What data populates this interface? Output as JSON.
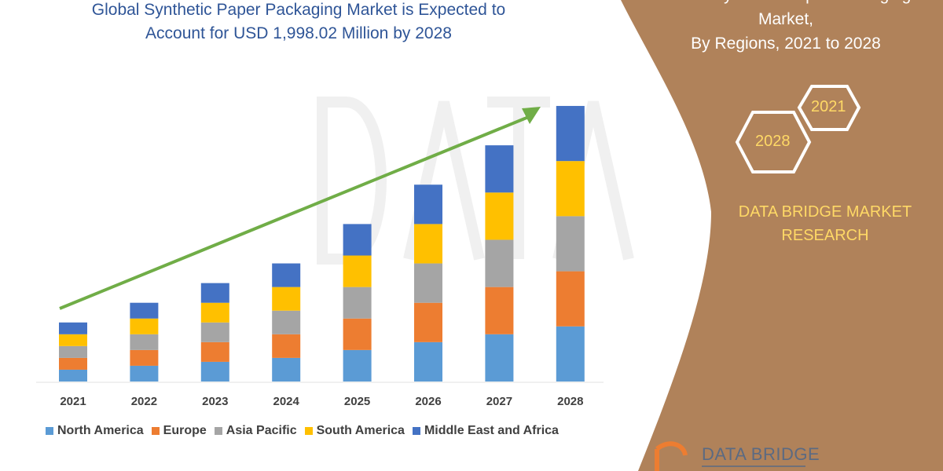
{
  "title": {
    "line1": "Global Synthetic Paper Packaging Market is Expected to",
    "line2": "Account for USD 1,998.02 Million by 2028"
  },
  "side_panel": {
    "title_line1": "Global Synthetic Paper Packaging",
    "title_line2": "Market,",
    "title_line3": "By Regions, 2021 to 2028",
    "hex_start": "2021",
    "hex_end": "2028",
    "brand_line1": "DATA BRIDGE MARKET",
    "brand_line2": "RESEARCH",
    "panel_color": "#b0825a",
    "brand_color": "#ffd966"
  },
  "logo": {
    "text": "DATA BRIDGE",
    "watermark": "DATA BRIDGE MARKET RESEARCH"
  },
  "chart_data": {
    "type": "bar",
    "stacked": true,
    "title": "Global Synthetic Paper Packaging Market is Expected to Account for USD 1,998.02 Million by 2028",
    "xlabel": "",
    "ylabel": "",
    "y_axis_shown": false,
    "grid": false,
    "legend_position": "bottom",
    "trend_arrow": {
      "color": "#70ad47",
      "from": "2021",
      "to": "2028"
    },
    "categories": [
      "2021",
      "2022",
      "2023",
      "2024",
      "2025",
      "2026",
      "2027",
      "2028"
    ],
    "series": [
      {
        "name": "North America",
        "color": "#5b9bd5",
        "values": [
          15,
          20,
          25,
          30,
          40,
          50,
          60,
          70
        ]
      },
      {
        "name": "Europe",
        "color": "#ed7d31",
        "values": [
          15,
          20,
          25,
          30,
          40,
          50,
          60,
          70
        ]
      },
      {
        "name": "Asia Pacific",
        "color": "#a5a5a5",
        "values": [
          15,
          20,
          25,
          30,
          40,
          50,
          60,
          70
        ]
      },
      {
        "name": "South America",
        "color": "#ffc000",
        "values": [
          15,
          20,
          25,
          30,
          40,
          50,
          60,
          70
        ]
      },
      {
        "name": "Middle East and Africa",
        "color": "#4472c4",
        "values": [
          15,
          20,
          25,
          30,
          40,
          50,
          60,
          70
        ]
      }
    ]
  }
}
